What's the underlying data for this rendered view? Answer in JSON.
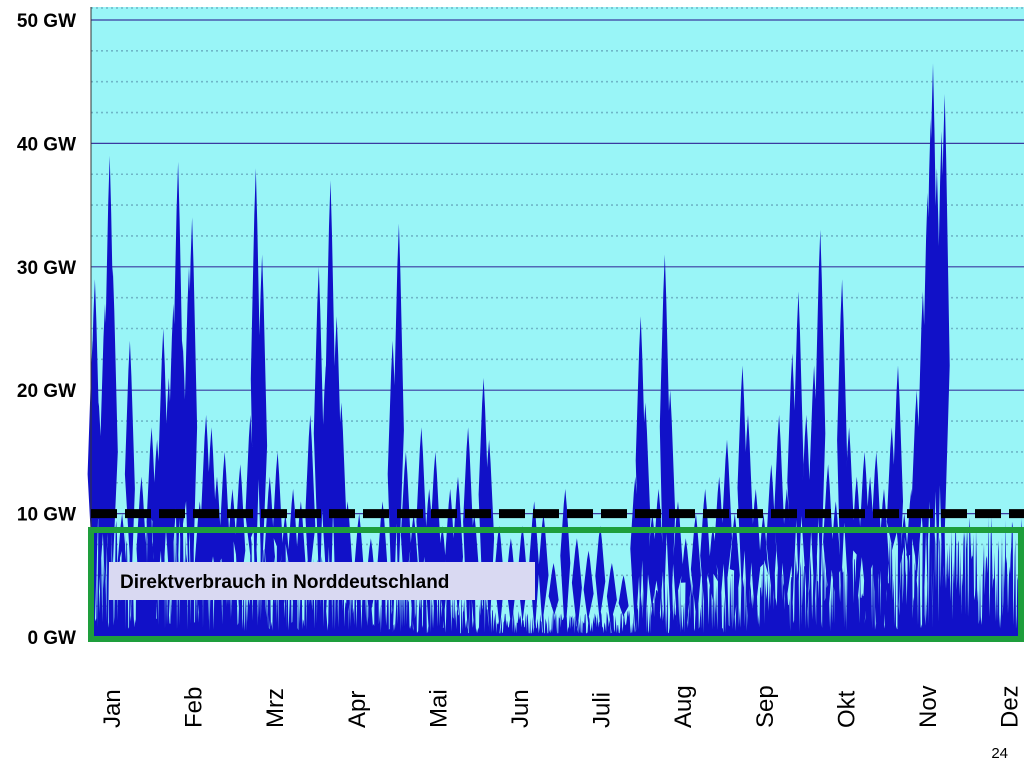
{
  "chart_data": {
    "type": "area",
    "title": "",
    "xlabel": "",
    "ylabel": "",
    "unit": "GW",
    "ylim": [
      0,
      50
    ],
    "grid": true,
    "y_ticks": [
      "0 GW",
      "10 GW",
      "20 GW",
      "30 GW",
      "40 GW",
      "50 GW"
    ],
    "y_tick_values": [
      0,
      10,
      20,
      30,
      40,
      50
    ],
    "categories": [
      "Jan",
      "Feb",
      "Mrz",
      "Apr",
      "Mai",
      "Jun",
      "Juli",
      "Aug",
      "Sep",
      "Okt",
      "Nov",
      "Dez"
    ],
    "threshold": 10,
    "annotation": "Direktverbrauch  in Norddeutschland",
    "peaks": [
      {
        "month": 0.02,
        "value": 24
      },
      {
        "month": 0.05,
        "value": 29
      },
      {
        "month": 0.1,
        "value": 19
      },
      {
        "month": 0.18,
        "value": 27
      },
      {
        "month": 0.24,
        "value": 39
      },
      {
        "month": 0.28,
        "value": 30
      },
      {
        "month": 0.4,
        "value": 10
      },
      {
        "month": 0.5,
        "value": 24
      },
      {
        "month": 0.65,
        "value": 13
      },
      {
        "month": 0.78,
        "value": 17
      },
      {
        "month": 0.85,
        "value": 16
      },
      {
        "month": 0.93,
        "value": 25
      },
      {
        "month": 1.0,
        "value": 21
      },
      {
        "month": 1.06,
        "value": 27
      },
      {
        "month": 1.12,
        "value": 38.5
      },
      {
        "month": 1.18,
        "value": 24
      },
      {
        "month": 1.26,
        "value": 30
      },
      {
        "month": 1.3,
        "value": 34
      },
      {
        "month": 1.4,
        "value": 11
      },
      {
        "month": 1.48,
        "value": 18
      },
      {
        "month": 1.55,
        "value": 17
      },
      {
        "month": 1.62,
        "value": 13
      },
      {
        "month": 1.72,
        "value": 15
      },
      {
        "month": 1.82,
        "value": 12
      },
      {
        "month": 1.92,
        "value": 14
      },
      {
        "month": 2.05,
        "value": 18
      },
      {
        "month": 2.12,
        "value": 38
      },
      {
        "month": 2.2,
        "value": 31
      },
      {
        "month": 2.3,
        "value": 13
      },
      {
        "month": 2.4,
        "value": 15
      },
      {
        "month": 2.5,
        "value": 10
      },
      {
        "month": 2.6,
        "value": 12
      },
      {
        "month": 2.7,
        "value": 11
      },
      {
        "month": 2.82,
        "value": 18
      },
      {
        "month": 2.93,
        "value": 30
      },
      {
        "month": 3.02,
        "value": 22
      },
      {
        "month": 3.08,
        "value": 37
      },
      {
        "month": 3.16,
        "value": 26
      },
      {
        "month": 3.22,
        "value": 19
      },
      {
        "month": 3.3,
        "value": 11
      },
      {
        "month": 3.45,
        "value": 10
      },
      {
        "month": 3.6,
        "value": 8
      },
      {
        "month": 3.75,
        "value": 11
      },
      {
        "month": 3.88,
        "value": 24
      },
      {
        "month": 3.96,
        "value": 33.5
      },
      {
        "month": 4.05,
        "value": 15
      },
      {
        "month": 4.15,
        "value": 10
      },
      {
        "month": 4.25,
        "value": 17
      },
      {
        "month": 4.35,
        "value": 12
      },
      {
        "month": 4.43,
        "value": 15
      },
      {
        "month": 4.52,
        "value": 9
      },
      {
        "month": 4.62,
        "value": 12
      },
      {
        "month": 4.72,
        "value": 13
      },
      {
        "month": 4.85,
        "value": 17
      },
      {
        "month": 4.93,
        "value": 10
      },
      {
        "month": 5.05,
        "value": 21
      },
      {
        "month": 5.12,
        "value": 16
      },
      {
        "month": 5.25,
        "value": 9
      },
      {
        "month": 5.4,
        "value": 8
      },
      {
        "month": 5.55,
        "value": 9
      },
      {
        "month": 5.7,
        "value": 11
      },
      {
        "month": 5.82,
        "value": 10
      },
      {
        "month": 5.95,
        "value": 6
      },
      {
        "month": 6.1,
        "value": 12
      },
      {
        "month": 6.25,
        "value": 8
      },
      {
        "month": 6.4,
        "value": 7
      },
      {
        "month": 6.55,
        "value": 9
      },
      {
        "month": 6.7,
        "value": 6
      },
      {
        "month": 6.85,
        "value": 5
      },
      {
        "month": 7.0,
        "value": 13
      },
      {
        "month": 7.07,
        "value": 26
      },
      {
        "month": 7.13,
        "value": 19
      },
      {
        "month": 7.22,
        "value": 10
      },
      {
        "month": 7.3,
        "value": 12
      },
      {
        "month": 7.38,
        "value": 31
      },
      {
        "month": 7.45,
        "value": 20
      },
      {
        "month": 7.55,
        "value": 11
      },
      {
        "month": 7.65,
        "value": 8
      },
      {
        "month": 7.78,
        "value": 10
      },
      {
        "month": 7.9,
        "value": 12
      },
      {
        "month": 8.0,
        "value": 9
      },
      {
        "month": 8.08,
        "value": 13
      },
      {
        "month": 8.18,
        "value": 16
      },
      {
        "month": 8.28,
        "value": 10
      },
      {
        "month": 8.38,
        "value": 22
      },
      {
        "month": 8.45,
        "value": 18
      },
      {
        "month": 8.55,
        "value": 12
      },
      {
        "month": 8.65,
        "value": 10
      },
      {
        "month": 8.75,
        "value": 14
      },
      {
        "month": 8.85,
        "value": 18
      },
      {
        "month": 8.95,
        "value": 12
      },
      {
        "month": 9.02,
        "value": 23
      },
      {
        "month": 9.1,
        "value": 28
      },
      {
        "month": 9.2,
        "value": 18
      },
      {
        "month": 9.3,
        "value": 22
      },
      {
        "month": 9.38,
        "value": 33
      },
      {
        "month": 9.48,
        "value": 14
      },
      {
        "month": 9.58,
        "value": 11
      },
      {
        "month": 9.66,
        "value": 29
      },
      {
        "month": 9.75,
        "value": 17
      },
      {
        "month": 9.85,
        "value": 13
      },
      {
        "month": 9.95,
        "value": 15
      },
      {
        "month": 10.02,
        "value": 13
      },
      {
        "month": 10.1,
        "value": 15
      },
      {
        "month": 10.2,
        "value": 12
      },
      {
        "month": 10.3,
        "value": 17
      },
      {
        "month": 10.38,
        "value": 22
      },
      {
        "month": 10.46,
        "value": 10
      },
      {
        "month": 10.55,
        "value": 12
      },
      {
        "month": 10.62,
        "value": 20
      },
      {
        "month": 10.7,
        "value": 28
      },
      {
        "month": 10.76,
        "value": 36
      },
      {
        "month": 10.8,
        "value": 42
      },
      {
        "month": 10.83,
        "value": 46.5
      },
      {
        "month": 10.88,
        "value": 38
      },
      {
        "month": 10.94,
        "value": 41
      },
      {
        "month": 10.98,
        "value": 44
      }
    ]
  },
  "page_number": "24"
}
